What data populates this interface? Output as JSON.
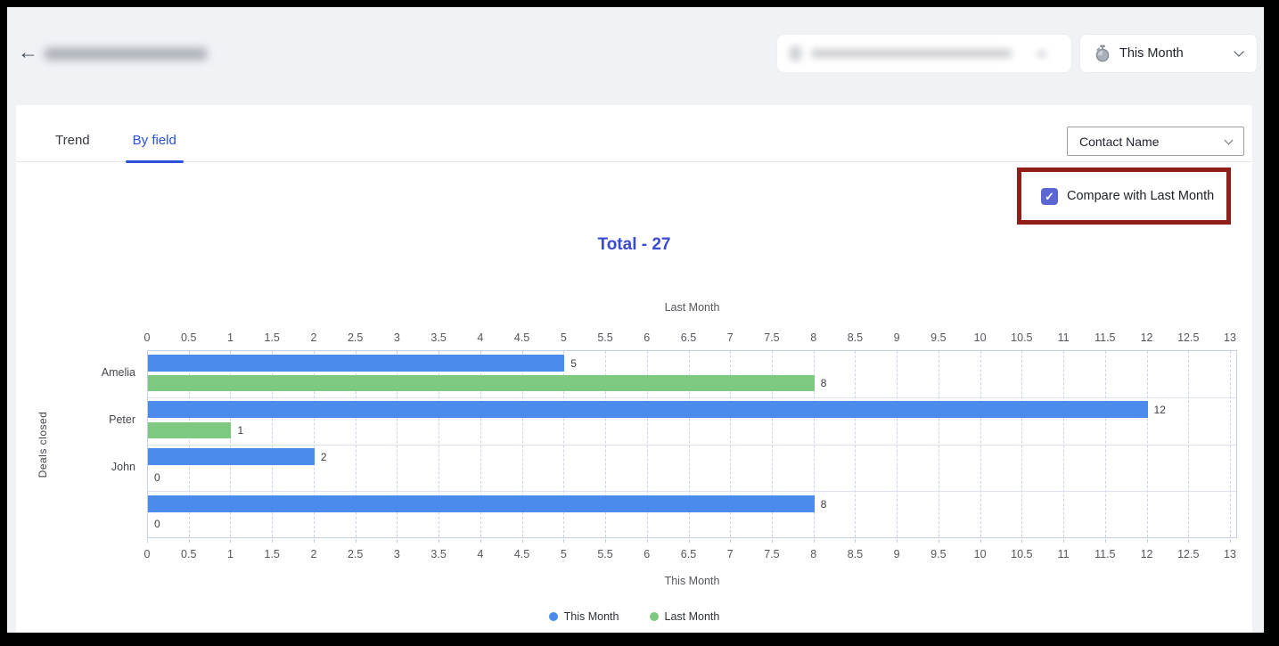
{
  "window": {
    "frame_color": "#000000",
    "page_background": "#f1f2f6",
    "card_background": "#ffffff"
  },
  "header": {
    "back_button": "←",
    "report_title": {
      "redacted": true
    },
    "owner_filter": {
      "redacted": true
    },
    "period_selector": {
      "value": "This Month",
      "icon": "stopwatch-icon"
    }
  },
  "tabs": {
    "items": [
      {
        "label": "Trend",
        "active": false
      },
      {
        "label": "By field",
        "active": true
      }
    ],
    "active_color": "#2b50da"
  },
  "controls": {
    "group_by_select": {
      "value": "Contact Name"
    },
    "compare_checkbox": {
      "label": "Compare with Last Month",
      "checked": true,
      "checkbox_color": "#5a66d1",
      "annotation_border_color": "#8f1f17"
    }
  },
  "summary": {
    "total_label": "Total - 27",
    "color": "#3a4bd3"
  },
  "chart_data": {
    "type": "bar",
    "orientation": "horizontal",
    "categories": [
      "Amelia",
      "Peter",
      "John",
      ""
    ],
    "series": [
      {
        "name": "This Month",
        "color": "#4a8bec",
        "values": [
          5,
          12,
          2,
          8
        ]
      },
      {
        "name": "Last Month",
        "color": "#7cc97f",
        "values": [
          8,
          1,
          0,
          0
        ]
      }
    ],
    "total_this_month": 27,
    "xlim": [
      0,
      13
    ],
    "tick_step": 0.5,
    "tick_labels": [
      "0",
      "0.5",
      "1",
      "1.5",
      "2",
      "2.5",
      "3",
      "3.5",
      "4",
      "4.5",
      "5",
      "5.5",
      "6",
      "6.5",
      "7",
      "7.5",
      "8",
      "8.5",
      "9",
      "9.5",
      "10",
      "10.5",
      "11",
      "11.5",
      "12",
      "12.5",
      "13"
    ],
    "top_axis_label": "Last Month",
    "bottom_axis_label": "This Month",
    "ylabel": "Deals closed",
    "show_value_labels": true,
    "grid": "vertical-dashed",
    "legend": {
      "position": "bottom-center",
      "entries": [
        {
          "label": "This Month",
          "color": "#4a8bec"
        },
        {
          "label": "Last Month",
          "color": "#7cc97f"
        }
      ]
    }
  }
}
